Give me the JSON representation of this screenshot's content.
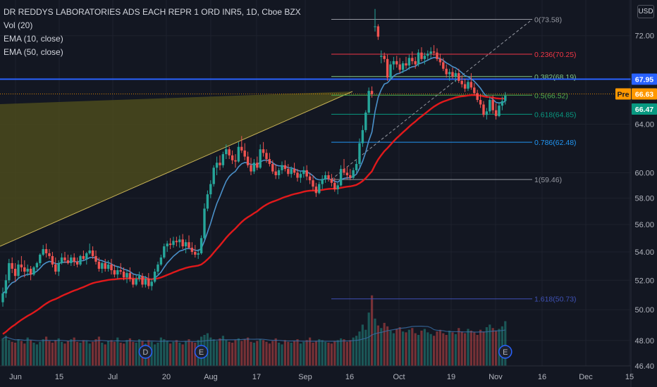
{
  "legend": {
    "title": "DR REDDYS LABORATORIES ADS EACH REPR 1 ORD INR5, 1D, Cboe BZX",
    "vol": "Vol (20)",
    "ema10": "EMA (10, close)",
    "ema50": "EMA (50, close)"
  },
  "currency_badge": "USD",
  "colors": {
    "background": "#131722",
    "up": "#26a69a",
    "down": "#ef5350",
    "ema10": "#4a90c9",
    "ema50": "#e0191b",
    "horizontal_line": "#2962ff",
    "triangle_fill": "#4b4a1c",
    "triangle_edge": "#c9b458",
    "pre_tag": "#ff9800"
  },
  "chart_data": {
    "type": "candlestick",
    "title": "DR REDDYS LABORATORIES ADS EACH REPR 1 ORD INR5, 1D, Cboe BZX",
    "y_axis": {
      "ticks": [
        "72.00",
        "64.00",
        "60.00",
        "58.00",
        "56.00",
        "54.00",
        "52.00",
        "50.00",
        "48.00",
        "46.40"
      ],
      "ylim": [
        46.4,
        75.5
      ],
      "scale": "log"
    },
    "x_axis": {
      "ticks": [
        "Jun",
        "15",
        "Jul",
        "20",
        "Aug",
        "17",
        "Sep",
        "16",
        "Oct",
        "19",
        "Nov",
        "16",
        "Dec",
        "15"
      ]
    },
    "price_labels": [
      {
        "label": "67.95",
        "value": 67.95,
        "style": "blue"
      },
      {
        "label": "Pre",
        "value": 66.63,
        "style": "pre"
      },
      {
        "label": "66.63",
        "value": 66.63,
        "style": "orange"
      },
      {
        "label": "66.47",
        "value": 66.47,
        "style": "green"
      }
    ],
    "horizontal_line": 67.95,
    "fib_levels": [
      {
        "label": "0(73.58)",
        "value": 73.58,
        "color": "#9598a1"
      },
      {
        "label": "0.236(70.25)",
        "value": 70.25,
        "color": "#f23645"
      },
      {
        "label": "0.382(68.19)",
        "value": 68.19,
        "color": "#81c784"
      },
      {
        "label": "0.5(66.52)",
        "value": 66.52,
        "color": "#4caf50"
      },
      {
        "label": "0.618(64.85)",
        "value": 64.85,
        "color": "#089981"
      },
      {
        "label": "0.786(62.48)",
        "value": 62.48,
        "color": "#2196f3"
      },
      {
        "label": "1(59.46)",
        "value": 59.46,
        "color": "#9598a1"
      },
      {
        "label": "1.618(50.73)",
        "value": 50.73,
        "color": "#3f51b5"
      }
    ],
    "event_markers": [
      {
        "label": "D",
        "date_index": 46
      },
      {
        "label": "E",
        "date_index": 64
      },
      {
        "label": "E",
        "date_index": 162
      }
    ],
    "candles": [
      [
        50.5,
        51.5,
        50.2,
        51.1
      ],
      [
        51.1,
        52.4,
        50.8,
        52.0
      ],
      [
        52.0,
        53.5,
        51.8,
        53.2
      ],
      [
        53.2,
        53.6,
        52.5,
        52.8
      ],
      [
        52.8,
        53.2,
        51.9,
        52.3
      ],
      [
        52.3,
        53.4,
        52.1,
        53.1
      ],
      [
        53.1,
        53.7,
        52.6,
        52.9
      ],
      [
        52.9,
        53.4,
        52.2,
        52.6
      ],
      [
        52.6,
        53.1,
        52.3,
        52.8
      ],
      [
        52.8,
        53.0,
        52.0,
        52.4
      ],
      [
        52.4,
        53.0,
        52.3,
        52.9
      ],
      [
        52.9,
        53.3,
        52.7,
        53.2
      ],
      [
        53.2,
        53.9,
        53.0,
        53.8
      ],
      [
        53.8,
        54.5,
        53.7,
        54.2
      ],
      [
        54.2,
        54.6,
        53.6,
        53.9
      ],
      [
        53.9,
        54.2,
        53.5,
        53.7
      ],
      [
        53.7,
        54.0,
        52.9,
        53.1
      ],
      [
        53.1,
        53.6,
        52.4,
        52.6
      ],
      [
        52.6,
        53.4,
        52.3,
        53.2
      ],
      [
        53.2,
        53.9,
        53.1,
        53.6
      ],
      [
        53.6,
        54.0,
        53.2,
        53.4
      ],
      [
        53.4,
        53.8,
        53.1,
        53.2
      ],
      [
        53.2,
        53.8,
        53.0,
        53.6
      ],
      [
        53.6,
        53.9,
        53.0,
        53.3
      ],
      [
        53.3,
        53.6,
        52.9,
        53.1
      ],
      [
        53.1,
        53.8,
        53.0,
        53.7
      ],
      [
        53.7,
        54.1,
        53.4,
        53.5
      ],
      [
        53.5,
        54.0,
        53.1,
        53.9
      ],
      [
        53.9,
        54.6,
        53.8,
        54.1
      ],
      [
        54.1,
        54.4,
        53.5,
        53.7
      ],
      [
        53.7,
        54.1,
        53.1,
        53.3
      ],
      [
        53.3,
        53.6,
        52.6,
        52.8
      ],
      [
        52.8,
        53.3,
        52.5,
        53.2
      ],
      [
        53.2,
        53.5,
        52.6,
        52.8
      ],
      [
        52.8,
        53.4,
        52.6,
        53.1
      ],
      [
        53.1,
        53.5,
        52.4,
        52.7
      ],
      [
        52.7,
        53.1,
        52.2,
        52.4
      ],
      [
        52.4,
        53.0,
        52.1,
        52.7
      ],
      [
        52.7,
        53.2,
        52.4,
        52.6
      ],
      [
        52.6,
        52.9,
        52.0,
        52.2
      ],
      [
        52.2,
        52.7,
        51.8,
        52.5
      ],
      [
        52.5,
        52.9,
        51.9,
        52.1
      ],
      [
        52.1,
        52.4,
        51.5,
        51.7
      ],
      [
        51.7,
        52.4,
        51.6,
        52.1
      ],
      [
        52.1,
        52.6,
        51.9,
        52.3
      ],
      [
        52.3,
        52.5,
        51.5,
        51.7
      ],
      [
        51.7,
        52.3,
        51.5,
        52.1
      ],
      [
        52.1,
        52.5,
        51.4,
        51.6
      ],
      [
        51.6,
        52.1,
        51.3,
        51.9
      ],
      [
        51.9,
        52.8,
        51.8,
        52.6
      ],
      [
        52.6,
        53.3,
        52.4,
        53.1
      ],
      [
        53.1,
        53.8,
        53.0,
        53.6
      ],
      [
        53.6,
        54.6,
        53.5,
        54.4
      ],
      [
        54.4,
        54.8,
        54.0,
        54.6
      ],
      [
        54.6,
        55.0,
        54.2,
        54.5
      ],
      [
        54.5,
        55.1,
        54.3,
        54.8
      ],
      [
        54.8,
        55.1,
        54.4,
        54.7
      ],
      [
        54.7,
        55.2,
        54.3,
        54.9
      ],
      [
        54.9,
        55.3,
        54.2,
        54.4
      ],
      [
        54.4,
        54.9,
        53.9,
        54.7
      ],
      [
        54.7,
        55.2,
        54.2,
        54.3
      ],
      [
        54.3,
        54.7,
        53.8,
        54.0
      ],
      [
        54.0,
        54.5,
        53.6,
        53.8
      ],
      [
        53.8,
        54.2,
        53.5,
        53.9
      ],
      [
        53.9,
        55.2,
        53.8,
        55.0
      ],
      [
        55.0,
        57.6,
        54.9,
        57.2
      ],
      [
        57.2,
        58.6,
        57.0,
        58.3
      ],
      [
        58.3,
        59.4,
        58.0,
        59.1
      ],
      [
        59.1,
        60.6,
        58.9,
        60.4
      ],
      [
        60.4,
        61.3,
        59.8,
        60.8
      ],
      [
        60.8,
        61.4,
        60.2,
        60.6
      ],
      [
        60.6,
        61.7,
        60.4,
        61.5
      ],
      [
        61.5,
        62.3,
        61.1,
        61.9
      ],
      [
        61.9,
        62.1,
        61.1,
        61.4
      ],
      [
        61.4,
        61.8,
        60.7,
        61.0
      ],
      [
        61.0,
        61.5,
        60.4,
        60.9
      ],
      [
        60.9,
        62.5,
        60.8,
        62.1
      ],
      [
        62.1,
        63.0,
        61.6,
        61.8
      ],
      [
        61.8,
        62.4,
        61.0,
        61.3
      ],
      [
        61.3,
        61.7,
        60.4,
        60.6
      ],
      [
        60.6,
        61.2,
        59.8,
        60.1
      ],
      [
        60.1,
        61.1,
        59.9,
        60.8
      ],
      [
        60.8,
        61.3,
        60.2,
        60.4
      ],
      [
        60.4,
        62.3,
        60.3,
        61.9
      ],
      [
        61.9,
        62.5,
        61.3,
        61.6
      ],
      [
        61.6,
        61.9,
        60.8,
        61.1
      ],
      [
        61.1,
        61.6,
        60.5,
        60.7
      ],
      [
        60.7,
        61.0,
        59.9,
        60.1
      ],
      [
        60.1,
        60.7,
        59.5,
        59.8
      ],
      [
        59.8,
        60.4,
        59.5,
        60.2
      ],
      [
        60.2,
        60.9,
        59.9,
        60.6
      ],
      [
        60.6,
        61.0,
        60.1,
        60.3
      ],
      [
        60.3,
        60.7,
        59.7,
        59.9
      ],
      [
        59.9,
        60.5,
        59.6,
        60.3
      ],
      [
        60.3,
        60.8,
        59.8,
        60.0
      ],
      [
        60.0,
        60.3,
        59.3,
        59.6
      ],
      [
        59.6,
        60.1,
        59.2,
        59.9
      ],
      [
        59.9,
        60.5,
        59.6,
        60.2
      ],
      [
        60.2,
        60.6,
        59.4,
        59.7
      ],
      [
        59.7,
        60.0,
        59.1,
        59.4
      ],
      [
        59.4,
        59.8,
        58.6,
        58.9
      ],
      [
        58.9,
        59.2,
        58.1,
        58.4
      ],
      [
        58.4,
        59.3,
        58.3,
        59.1
      ],
      [
        59.1,
        59.8,
        58.7,
        59.5
      ],
      [
        59.5,
        60.1,
        59.2,
        59.8
      ],
      [
        59.8,
        60.1,
        59.3,
        59.5
      ],
      [
        59.5,
        59.9,
        58.9,
        59.2
      ],
      [
        59.2,
        59.6,
        58.5,
        58.7
      ],
      [
        58.7,
        59.2,
        58.3,
        59.0
      ],
      [
        59.0,
        60.6,
        58.9,
        60.3
      ],
      [
        60.3,
        61.1,
        59.8,
        60.0
      ],
      [
        60.0,
        60.5,
        59.5,
        59.8
      ],
      [
        59.8,
        60.3,
        59.4,
        59.6
      ],
      [
        59.6,
        60.4,
        59.5,
        60.2
      ],
      [
        60.2,
        61.0,
        60.0,
        60.7
      ],
      [
        60.7,
        62.8,
        60.5,
        62.4
      ],
      [
        62.4,
        63.9,
        62.1,
        63.5
      ],
      [
        63.5,
        65.2,
        63.3,
        65.0
      ],
      [
        65.0,
        67.2,
        64.9,
        66.9
      ],
      [
        66.9,
        67.3,
        66.3,
        66.6
      ],
      [
        72.9,
        74.6,
        72.4,
        72.9
      ],
      [
        72.9,
        73.1,
        71.6,
        71.9
      ],
      [
        70.0,
        70.6,
        69.4,
        70.1
      ],
      [
        70.1,
        70.4,
        69.5,
        69.8
      ],
      [
        69.8,
        70.2,
        67.8,
        68.1
      ],
      [
        68.1,
        69.6,
        67.9,
        69.3
      ],
      [
        69.3,
        70.0,
        68.8,
        69.6
      ],
      [
        69.6,
        70.1,
        69.0,
        69.3
      ],
      [
        69.3,
        69.9,
        68.5,
        68.8
      ],
      [
        68.8,
        69.6,
        68.5,
        69.4
      ],
      [
        69.4,
        70.0,
        68.9,
        69.2
      ],
      [
        69.2,
        70.2,
        68.8,
        69.9
      ],
      [
        69.9,
        70.5,
        69.3,
        69.6
      ],
      [
        69.6,
        70.0,
        68.9,
        69.3
      ],
      [
        69.3,
        70.7,
        69.1,
        70.4
      ],
      [
        70.4,
        70.9,
        69.6,
        69.8
      ],
      [
        69.8,
        70.4,
        69.3,
        70.1
      ],
      [
        70.1,
        70.6,
        69.7,
        70.3
      ],
      [
        70.3,
        70.9,
        69.9,
        70.5
      ],
      [
        70.5,
        71.1,
        70.1,
        70.4
      ],
      [
        70.4,
        70.8,
        69.6,
        69.8
      ],
      [
        69.8,
        70.3,
        69.2,
        69.5
      ],
      [
        69.5,
        69.9,
        68.7,
        68.9
      ],
      [
        68.9,
        69.3,
        68.1,
        68.4
      ],
      [
        68.4,
        68.9,
        67.8,
        68.6
      ],
      [
        68.6,
        69.0,
        68.0,
        68.2
      ],
      [
        68.2,
        68.8,
        67.7,
        68.5
      ],
      [
        68.5,
        68.9,
        67.6,
        67.8
      ],
      [
        67.8,
        68.3,
        67.2,
        67.5
      ],
      [
        67.5,
        68.0,
        66.8,
        67.1
      ],
      [
        67.1,
        67.9,
        66.9,
        67.7
      ],
      [
        67.7,
        68.5,
        67.0,
        67.2
      ],
      [
        67.2,
        67.6,
        66.5,
        66.7
      ],
      [
        66.7,
        67.0,
        65.9,
        66.1
      ],
      [
        66.1,
        66.6,
        65.4,
        65.7
      ],
      [
        65.7,
        66.0,
        64.6,
        64.8
      ],
      [
        64.8,
        65.4,
        64.4,
        65.1
      ],
      [
        65.1,
        66.4,
        64.9,
        66.1
      ],
      [
        66.1,
        66.5,
        64.9,
        65.2
      ],
      [
        65.2,
        65.8,
        64.4,
        64.7
      ],
      [
        64.7,
        65.9,
        64.6,
        65.6
      ],
      [
        65.6,
        66.4,
        65.2,
        66.0
      ],
      [
        66.0,
        66.8,
        65.7,
        66.47
      ]
    ],
    "volume": [
      32,
      35,
      30,
      28,
      27,
      31,
      29,
      26,
      33,
      30,
      27,
      25,
      28,
      31,
      34,
      29,
      27,
      30,
      32,
      28,
      26,
      29,
      31,
      33,
      28,
      27,
      30,
      29,
      26,
      28,
      31,
      34,
      27,
      25,
      29,
      30,
      28,
      33,
      27,
      26,
      30,
      32,
      28,
      27,
      31,
      29,
      26,
      30,
      28,
      25,
      27,
      33,
      31,
      29,
      26,
      28,
      30,
      27,
      25,
      29,
      31,
      28,
      27,
      30,
      34,
      36,
      38,
      33,
      31,
      29,
      32,
      35,
      30,
      28,
      27,
      30,
      32,
      29,
      31,
      33,
      28,
      27,
      29,
      31,
      30,
      28,
      26,
      29,
      32,
      27,
      25,
      30,
      28,
      27,
      29,
      31,
      26,
      28,
      30,
      33,
      27,
      29,
      31,
      30,
      28,
      27,
      26,
      29,
      30,
      32,
      31,
      28,
      30,
      33,
      35,
      40,
      48,
      42,
      62,
      82,
      55,
      47,
      44,
      50,
      46,
      41,
      38,
      43,
      45,
      40,
      39,
      42,
      44,
      38,
      36,
      41,
      43,
      39,
      37,
      35,
      40,
      42,
      38,
      36,
      41,
      39,
      37,
      44,
      40,
      38,
      43,
      41,
      39,
      36,
      42,
      40,
      45,
      48,
      44,
      41,
      43,
      46,
      52
    ]
  }
}
